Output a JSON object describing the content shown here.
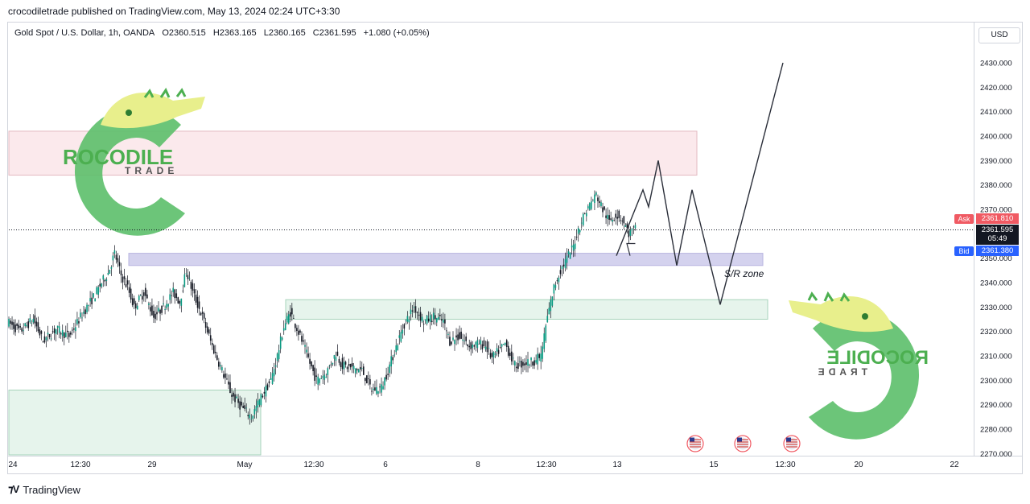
{
  "header": {
    "publish_line": "crocodiletrade published on TradingView.com, May 13, 2024 02:24 UTC+3:30"
  },
  "symbol": {
    "name": "Gold Spot / U.S. Dollar, 1h, OANDA",
    "open": "O2360.515",
    "high": "H2363.165",
    "low": "L2360.165",
    "close": "C2361.595",
    "change": "+1.080 (+0.05%)"
  },
  "currency_button": "USD",
  "price_tags": {
    "ask_label": "Ask",
    "ask_value": "2361.810",
    "last_value": "2361.595",
    "countdown": "05:49",
    "bid_label": "Bid",
    "bid_value": "2361.380"
  },
  "annotation": {
    "sr_zone": "S/R zone"
  },
  "logo": {
    "brand_main": "CROCODILE",
    "brand_main_display": "ROCODILE",
    "brand_sub": "TRADE"
  },
  "footer": {
    "brand": "TradingView",
    "icon": "tradingview-logo-icon"
  },
  "colors": {
    "up_candle": "#089981",
    "down_candle": "#131722",
    "resistance_zone": "#fbe9ec",
    "sr_zone": "#d4d2ee",
    "support_zone": "#e6f4ec",
    "ask": "#f05a63",
    "bid": "#2962ff",
    "logo_green": "#5cbf6a"
  },
  "chart_data": {
    "type": "candlestick",
    "y_axis": {
      "ticks": [
        "2430.000",
        "2420.000",
        "2410.000",
        "2400.000",
        "2390.000",
        "2380.000",
        "2370.000",
        "2360.000",
        "2350.000",
        "2340.000",
        "2330.000",
        "2320.000",
        "2310.000",
        "2300.000",
        "2290.000",
        "2280.000",
        "2270.000"
      ],
      "range": [
        2268,
        2437
      ]
    },
    "x_axis": {
      "ticks": [
        "24",
        "12:30",
        "29",
        "May",
        "12:30",
        "6",
        "8",
        "12:30",
        "13",
        "15",
        "12:30",
        "20",
        "22"
      ]
    },
    "price_path": [
      [
        0,
        2324
      ],
      [
        8,
        2320
      ],
      [
        16,
        2325
      ],
      [
        22,
        2316
      ],
      [
        30,
        2321
      ],
      [
        38,
        2318
      ],
      [
        46,
        2327
      ],
      [
        54,
        2335
      ],
      [
        58,
        2340
      ],
      [
        62,
        2344
      ],
      [
        66,
        2352
      ],
      [
        70,
        2343
      ],
      [
        74,
        2338
      ],
      [
        78,
        2330
      ],
      [
        84,
        2336
      ],
      [
        90,
        2326
      ],
      [
        96,
        2330
      ],
      [
        102,
        2336
      ],
      [
        106,
        2332
      ],
      [
        110,
        2345
      ],
      [
        114,
        2336
      ],
      [
        120,
        2326
      ],
      [
        126,
        2314
      ],
      [
        132,
        2304
      ],
      [
        138,
        2294
      ],
      [
        144,
        2289
      ],
      [
        150,
        2285
      ],
      [
        156,
        2293
      ],
      [
        162,
        2300
      ],
      [
        166,
        2310
      ],
      [
        170,
        2322
      ],
      [
        174,
        2328
      ],
      [
        180,
        2318
      ],
      [
        186,
        2307
      ],
      [
        190,
        2300
      ],
      [
        196,
        2303
      ],
      [
        202,
        2311
      ],
      [
        206,
        2306
      ],
      [
        212,
        2305
      ],
      [
        218,
        2304
      ],
      [
        224,
        2296
      ],
      [
        230,
        2297
      ],
      [
        234,
        2304
      ],
      [
        238,
        2312
      ],
      [
        244,
        2323
      ],
      [
        250,
        2330
      ],
      [
        256,
        2324
      ],
      [
        262,
        2326
      ],
      [
        268,
        2324
      ],
      [
        272,
        2316
      ],
      [
        278,
        2318
      ],
      [
        284,
        2314
      ],
      [
        290,
        2315
      ],
      [
        294,
        2314
      ],
      [
        298,
        2309
      ],
      [
        302,
        2312
      ],
      [
        306,
        2315
      ],
      [
        312,
        2306
      ],
      [
        318,
        2307
      ],
      [
        324,
        2308
      ],
      [
        328,
        2310
      ],
      [
        332,
        2326
      ],
      [
        336,
        2338
      ],
      [
        340,
        2345
      ],
      [
        344,
        2350
      ],
      [
        348,
        2355
      ],
      [
        350,
        2360
      ],
      [
        354,
        2367
      ],
      [
        358,
        2372
      ],
      [
        362,
        2376
      ],
      [
        366,
        2370
      ],
      [
        370,
        2365
      ],
      [
        374,
        2368
      ],
      [
        378,
        2366
      ],
      [
        382,
        2360
      ],
      [
        386,
        2362
      ]
    ],
    "projection": [
      [
        2360.5,
        2351
      ],
      [
        2380,
        2378
      ],
      [
        2387,
        2371
      ],
      [
        2401,
        2390
      ],
      [
        2418,
        2347
      ],
      [
        2435,
        2378
      ],
      [
        2453,
        2331
      ],
      [
        2487,
        2430
      ]
    ],
    "zones": [
      {
        "name": "resistance",
        "from": 2384,
        "to": 2402
      },
      {
        "name": "sr",
        "from": 2347,
        "to": 2352
      },
      {
        "name": "support-mid",
        "from": 2325,
        "to": 2333
      },
      {
        "name": "support-low",
        "from": 2270,
        "to": 2296
      }
    ],
    "current_price": 2361.595,
    "events": [
      "us-flag-event",
      "us-flag-event",
      "us-flag-event"
    ]
  }
}
